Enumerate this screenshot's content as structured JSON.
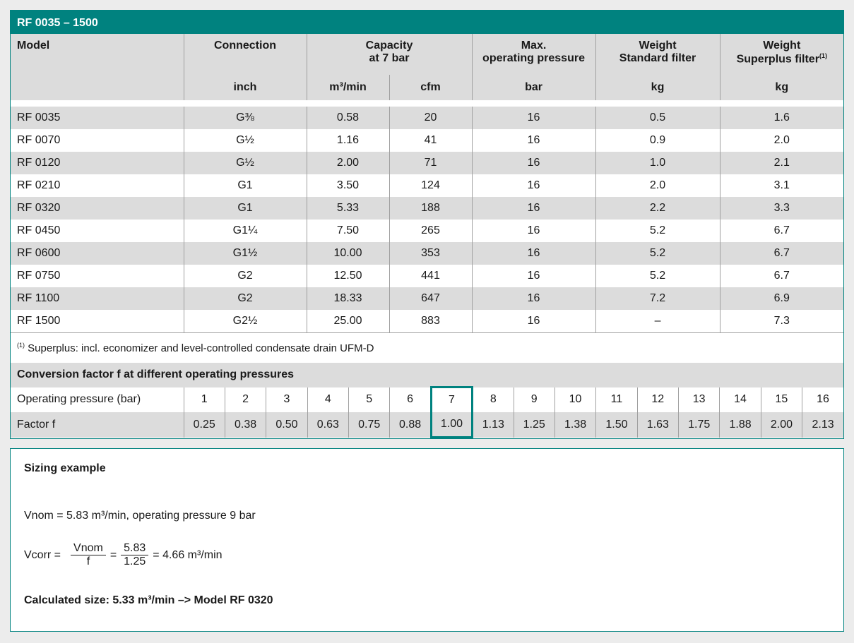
{
  "title": "RF 0035 – 1500",
  "headers": {
    "model": "Model",
    "connection": "Connection",
    "capacity": "Capacity",
    "capacity2": "at 7 bar",
    "maxp": "Max.",
    "maxp2": "operating pressure",
    "ws": "Weight",
    "ws2": "Standard filter",
    "wsp": "Weight",
    "wsp2": "Superplus filter",
    "wsp_sup": "(1)",
    "units": [
      "inch",
      "m³/min",
      "cfm",
      "bar",
      "kg",
      "kg"
    ]
  },
  "rows": [
    [
      "RF 0035",
      "G⅜",
      "0.58",
      "20",
      "16",
      "0.5",
      "1.6"
    ],
    [
      "RF 0070",
      "G½",
      "1.16",
      "41",
      "16",
      "0.9",
      "2.0"
    ],
    [
      "RF 0120",
      "G½",
      "2.00",
      "71",
      "16",
      "1.0",
      "2.1"
    ],
    [
      "RF 0210",
      "G1",
      "3.50",
      "124",
      "16",
      "2.0",
      "3.1"
    ],
    [
      "RF 0320",
      "G1",
      "5.33",
      "188",
      "16",
      "2.2",
      "3.3"
    ],
    [
      "RF 0450",
      "G1¼",
      "7.50",
      "265",
      "16",
      "5.2",
      "6.7"
    ],
    [
      "RF 0600",
      "G1½",
      "10.00",
      "353",
      "16",
      "5.2",
      "6.7"
    ],
    [
      "RF 0750",
      "G2",
      "12.50",
      "441",
      "16",
      "5.2",
      "6.7"
    ],
    [
      "RF 1100",
      "G2",
      "18.33",
      "647",
      "16",
      "7.2",
      "6.9"
    ],
    [
      "RF 1500",
      "G2½",
      "25.00",
      "883",
      "16",
      "–",
      "7.3"
    ]
  ],
  "footnote": {
    "mark": "(1)",
    "text": " Superplus: incl. economizer and level-controlled condensate drain UFM-D"
  },
  "conversion": {
    "title": "Conversion factor f at different operating pressures",
    "pressure_label": "Operating pressure (bar)",
    "factor_label": "Factor f",
    "pressures": [
      "1",
      "2",
      "3",
      "4",
      "5",
      "6",
      "7",
      "8",
      "9",
      "10",
      "11",
      "12",
      "13",
      "14",
      "15",
      "16"
    ],
    "factors": [
      "0.25",
      "0.38",
      "0.50",
      "0.63",
      "0.75",
      "0.88",
      "1.00",
      "1.13",
      "1.25",
      "1.38",
      "1.50",
      "1.63",
      "1.75",
      "1.88",
      "2.00",
      "2.13"
    ],
    "highlighted_pressure": "7",
    "highlight_color": "#00827f"
  },
  "sizing": {
    "title": "Sizing example",
    "line1": "Vnom = 5.83 m³/min, operating pressure 9 bar",
    "vcorr": "Vcorr =",
    "num1": "Vnom",
    "den1": "f",
    "eq": "=",
    "num2": "5.83",
    "den2": "1.25",
    "result": "= 4.66 m³/min",
    "conclusion": "Calculated size: 5.33 m³/min –> Model RF 0320"
  },
  "colors": {
    "accent": "#00827f",
    "row_gray": "#dcdcdc"
  }
}
